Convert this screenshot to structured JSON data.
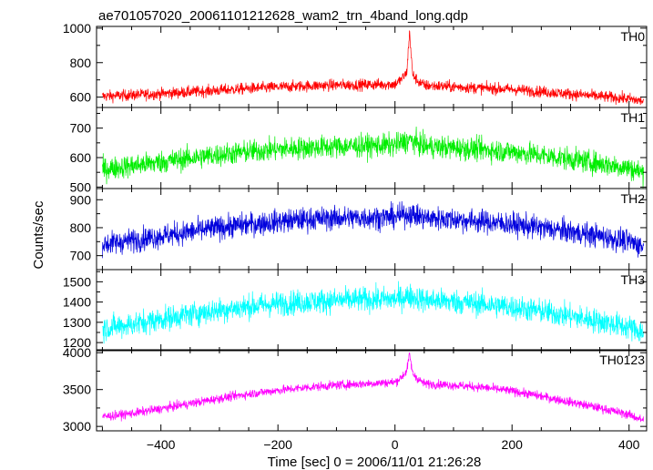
{
  "chart_data": {
    "type": "line",
    "title": "ae701057020_20061101212628_wam2_trn_4band_long.qdp",
    "xlabel": "Time [sec] 0 = 2006/11/01 21:26:28",
    "ylabel": "Counts/sec",
    "xlim": [
      -510,
      430
    ],
    "xticks": [
      -400,
      -200,
      0,
      200,
      400
    ],
    "grid": false,
    "panels": [
      {
        "name": "TH0",
        "color": "#ff0000",
        "ylim": [
          540,
          1010
        ],
        "yticks": [
          600,
          800,
          1000
        ],
        "x": [
          -500,
          -450,
          -400,
          -350,
          -300,
          -250,
          -200,
          -150,
          -100,
          -50,
          0,
          10,
          20,
          25,
          30,
          40,
          50,
          100,
          150,
          200,
          250,
          300,
          350,
          400,
          425
        ],
        "values": [
          605,
          612,
          620,
          630,
          640,
          650,
          658,
          665,
          670,
          672,
          675,
          700,
          740,
          980,
          730,
          690,
          668,
          660,
          652,
          645,
          632,
          618,
          605,
          590,
          575
        ],
        "amplitude": 30
      },
      {
        "name": "TH1",
        "color": "#00ee00",
        "ylim": [
          495,
          770
        ],
        "yticks": [
          500,
          600,
          700
        ],
        "x": [
          -500,
          -450,
          -400,
          -350,
          -300,
          -250,
          -200,
          -150,
          -100,
          -50,
          0,
          25,
          50,
          100,
          150,
          200,
          250,
          300,
          350,
          400,
          425
        ],
        "values": [
          560,
          572,
          585,
          598,
          610,
          620,
          628,
          634,
          637,
          640,
          642,
          660,
          638,
          633,
          627,
          620,
          608,
          595,
          580,
          565,
          548
        ],
        "amplitude": 35
      },
      {
        "name": "TH2",
        "color": "#0000dd",
        "ylim": [
          650,
          940
        ],
        "yticks": [
          700,
          800,
          900
        ],
        "x": [
          -500,
          -450,
          -400,
          -350,
          -300,
          -250,
          -200,
          -150,
          -100,
          -50,
          0,
          25,
          50,
          100,
          150,
          200,
          250,
          300,
          350,
          400,
          425
        ],
        "values": [
          740,
          755,
          770,
          785,
          800,
          812,
          822,
          830,
          834,
          836,
          838,
          850,
          835,
          830,
          822,
          812,
          800,
          785,
          770,
          750,
          732
        ],
        "amplitude": 38
      },
      {
        "name": "TH3",
        "color": "#00ffff",
        "ylim": [
          1160,
          1560
        ],
        "yticks": [
          1200,
          1300,
          1400,
          1500
        ],
        "x": [
          -500,
          -450,
          -400,
          -350,
          -300,
          -250,
          -200,
          -150,
          -100,
          -50,
          0,
          25,
          50,
          100,
          150,
          200,
          250,
          300,
          350,
          400,
          425
        ],
        "values": [
          1270,
          1290,
          1315,
          1340,
          1360,
          1378,
          1392,
          1402,
          1408,
          1412,
          1414,
          1430,
          1410,
          1402,
          1390,
          1375,
          1355,
          1330,
          1305,
          1275,
          1250
        ],
        "amplitude": 55
      },
      {
        "name": "TH0123",
        "color": "#ff00ff",
        "ylim": [
          2940,
          4040
        ],
        "yticks": [
          3000,
          3500,
          4000
        ],
        "x": [
          -500,
          -450,
          -400,
          -350,
          -300,
          -250,
          -200,
          -150,
          -100,
          -50,
          0,
          10,
          20,
          25,
          30,
          40,
          50,
          100,
          150,
          200,
          250,
          300,
          350,
          400,
          425
        ],
        "values": [
          3130,
          3175,
          3240,
          3310,
          3380,
          3440,
          3490,
          3530,
          3560,
          3580,
          3600,
          3660,
          3750,
          3980,
          3720,
          3640,
          3580,
          3560,
          3530,
          3480,
          3410,
          3330,
          3250,
          3160,
          3080
        ],
        "amplitude": 55
      }
    ]
  }
}
